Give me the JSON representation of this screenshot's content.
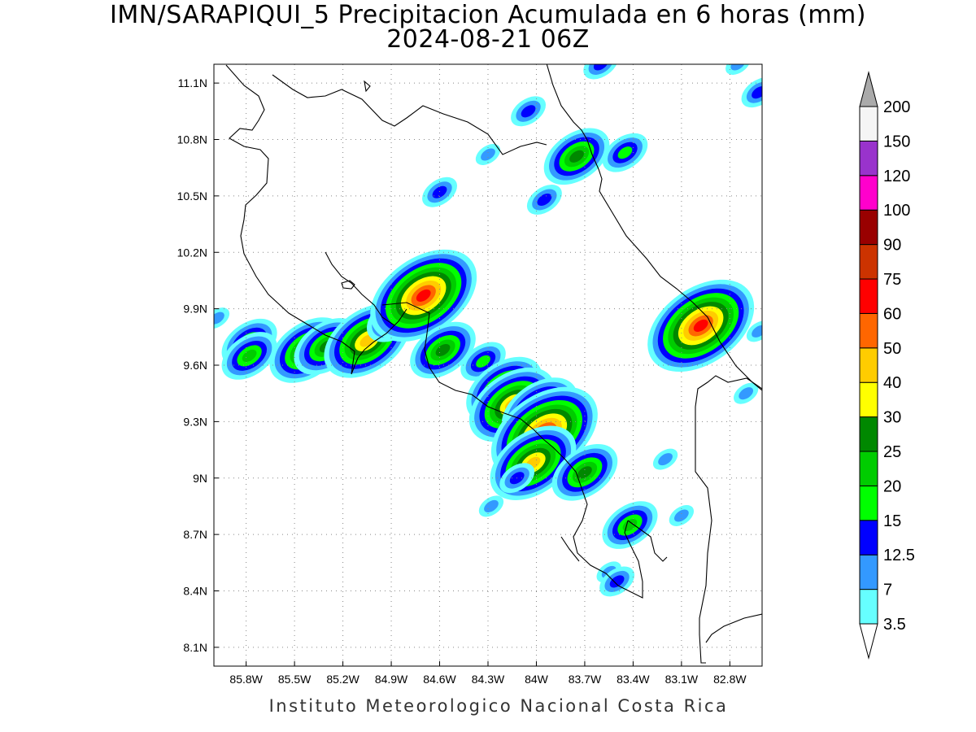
{
  "title_line1": "IMN/SARAPIQUI_5 Precipitacion Acumulada en 6 horas (mm)",
  "title_line2": "2024-08-21 06Z",
  "footer": "Instituto Meteorologico Nacional Costa Rica",
  "map": {
    "lon_range": [
      -86.0,
      -82.6
    ],
    "lat_range": [
      8.0,
      11.2
    ],
    "x_tick_labels": [
      "85.8W",
      "85.5W",
      "85.2W",
      "84.9W",
      "84.6W",
      "84.3W",
      "84W",
      "83.7W",
      "83.4W",
      "83.1W",
      "82.8W"
    ],
    "x_tick_values": [
      -85.8,
      -85.5,
      -85.2,
      -84.9,
      -84.6,
      -84.3,
      -84.0,
      -83.7,
      -83.4,
      -83.1,
      -82.8
    ],
    "y_tick_labels": [
      "11.1N",
      "10.8N",
      "10.5N",
      "10.2N",
      "9.9N",
      "9.6N",
      "9.3N",
      "9N",
      "8.7N",
      "8.4N",
      "8.1N"
    ],
    "y_tick_values": [
      11.1,
      10.8,
      10.5,
      10.2,
      9.9,
      9.6,
      9.3,
      9.0,
      8.7,
      8.4,
      8.1
    ],
    "grid": "dotted"
  },
  "colorbar": {
    "levels": [
      "3.5",
      "7",
      "12.5",
      "15",
      "20",
      "25",
      "30",
      "40",
      "50",
      "60",
      "75",
      "90",
      "100",
      "120",
      "150",
      "200"
    ],
    "colors": [
      "#66ffff",
      "#3399ff",
      "#0000ff",
      "#00ff00",
      "#00cc00",
      "#008800",
      "#ffff00",
      "#ffcc00",
      "#ff6600",
      "#ff0000",
      "#cc3300",
      "#990000",
      "#ff00cc",
      "#9933cc",
      "#f5f5f5"
    ],
    "top_arrow_color": "#aaaaaa",
    "bottom_arrow_color": "#ffffff"
  },
  "precip_cells": [
    {
      "lon": -85.98,
      "lat": 9.85,
      "level": 1
    },
    {
      "lon": -85.78,
      "lat": 9.72,
      "level": 4
    },
    {
      "lon": -85.78,
      "lat": 9.65,
      "level": 4
    },
    {
      "lon": -85.42,
      "lat": 9.68,
      "level": 6
    },
    {
      "lon": -85.3,
      "lat": 9.7,
      "level": 5
    },
    {
      "lon": -85.05,
      "lat": 9.73,
      "level": 7
    },
    {
      "lon": -84.88,
      "lat": 9.85,
      "level": 4
    },
    {
      "lon": -84.7,
      "lat": 9.97,
      "level": 9
    },
    {
      "lon": -84.58,
      "lat": 9.68,
      "level": 5
    },
    {
      "lon": -84.33,
      "lat": 9.62,
      "level": 3
    },
    {
      "lon": -84.2,
      "lat": 9.47,
      "level": 6
    },
    {
      "lon": -84.15,
      "lat": 9.39,
      "level": 7
    },
    {
      "lon": -83.98,
      "lat": 9.36,
      "level": 6
    },
    {
      "lon": -83.95,
      "lat": 9.24,
      "level": 9
    },
    {
      "lon": -84.02,
      "lat": 9.08,
      "level": 7
    },
    {
      "lon": -84.12,
      "lat": 9.0,
      "level": 2
    },
    {
      "lon": -84.28,
      "lat": 8.85,
      "level": 1
    },
    {
      "lon": -83.7,
      "lat": 9.03,
      "level": 5
    },
    {
      "lon": -83.42,
      "lat": 8.75,
      "level": 4
    },
    {
      "lon": -83.55,
      "lat": 8.5,
      "level": 1
    },
    {
      "lon": -83.5,
      "lat": 8.45,
      "level": 2
    },
    {
      "lon": -82.98,
      "lat": 9.81,
      "level": 9
    },
    {
      "lon": -83.75,
      "lat": 10.71,
      "level": 5
    },
    {
      "lon": -83.45,
      "lat": 10.73,
      "level": 3
    },
    {
      "lon": -84.05,
      "lat": 10.95,
      "level": 2
    },
    {
      "lon": -83.6,
      "lat": 11.2,
      "level": 2
    },
    {
      "lon": -84.6,
      "lat": 10.52,
      "level": 2
    },
    {
      "lon": -83.95,
      "lat": 10.48,
      "level": 2
    },
    {
      "lon": -84.3,
      "lat": 10.72,
      "level": 1
    },
    {
      "lon": -82.75,
      "lat": 11.2,
      "level": 1
    },
    {
      "lon": -82.62,
      "lat": 11.05,
      "level": 2
    },
    {
      "lon": -82.7,
      "lat": 9.45,
      "level": 1
    },
    {
      "lon": -82.62,
      "lat": 9.78,
      "level": 1
    },
    {
      "lon": -83.2,
      "lat": 9.1,
      "level": 1
    },
    {
      "lon": -83.1,
      "lat": 8.8,
      "level": 1
    }
  ]
}
